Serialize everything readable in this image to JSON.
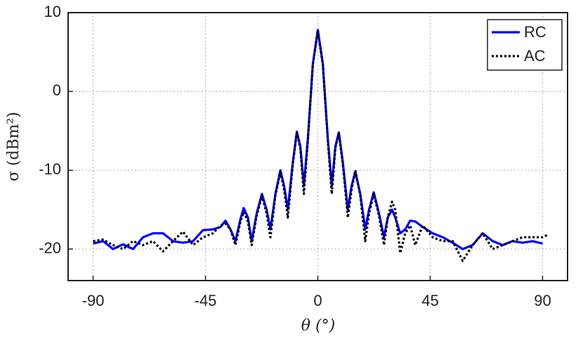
{
  "chart_data": {
    "type": "line",
    "x_label": "θ (°)",
    "y_label": "σ (dBm²)",
    "x": [
      -90,
      -86,
      -82,
      -78,
      -74,
      -70,
      -66,
      -62,
      -58,
      -54,
      -50,
      -46,
      -42,
      -39,
      -37,
      -35,
      -33,
      -31,
      -29.7,
      -28,
      -26.5,
      -24.5,
      -22.4,
      -20.5,
      -19,
      -17,
      -15,
      -13.5,
      -12,
      -10,
      -8.4,
      -7,
      -5.6,
      -4,
      -2,
      0,
      2,
      4,
      5.6,
      7,
      8.4,
      10,
      12,
      13.5,
      15,
      17,
      19,
      20.5,
      22.4,
      24.5,
      26.5,
      28,
      29.7,
      31,
      33,
      35,
      37,
      39,
      42,
      46,
      50,
      54,
      58,
      62,
      66,
      70,
      74,
      78,
      82,
      86,
      90,
      92
    ],
    "series": [
      {
        "name": "RC",
        "color": "#0000ff",
        "style": "solid",
        "values": [
          -19.3,
          -19,
          -20,
          -19.4,
          -20,
          -18.5,
          -18,
          -18,
          -19,
          -19.2,
          -19,
          -17.6,
          -17.5,
          -17.2,
          -16.4,
          -17.5,
          -19,
          -16.2,
          -14.8,
          -16,
          -19,
          -15.5,
          -13,
          -15,
          -17.5,
          -13,
          -10,
          -12,
          -15,
          -9,
          -5.1,
          -7,
          -12,
          -6,
          3.5,
          7.8,
          3.5,
          -6,
          -12,
          -7,
          -5.2,
          -9,
          -15,
          -12,
          -10.2,
          -13,
          -17.5,
          -15,
          -12.8,
          -15.5,
          -18.5,
          -16,
          -15,
          -16,
          -18,
          -17.5,
          -16.4,
          -16.5,
          -17.2,
          -18,
          -18.5,
          -19.2,
          -20,
          -19.5,
          -18,
          -19,
          -19.5,
          -19,
          -19.2,
          -19,
          -19.3,
          null
        ]
      },
      {
        "name": "AC",
        "color": "#000000",
        "style": "dotted",
        "values": [
          -19,
          -18.8,
          -19.5,
          -20,
          -19,
          -19.5,
          -19,
          -20.3,
          -19,
          -17.8,
          -19.5,
          -18.5,
          -18,
          -17,
          -16.8,
          -17.5,
          -19.5,
          -16.5,
          -15.3,
          -16.5,
          -19.5,
          -15.8,
          -13.2,
          -15.5,
          -18.5,
          -13.2,
          -10.2,
          -12.5,
          -16,
          -9.2,
          -5.2,
          -7.2,
          -13,
          -6.2,
          3.4,
          7.7,
          3.4,
          -6.2,
          -13,
          -7.2,
          -5.3,
          -9.2,
          -16,
          -12.5,
          -10,
          -13.2,
          -19,
          -15.5,
          -13,
          -15.8,
          -19.5,
          -16,
          -14,
          -15,
          -20.5,
          -18,
          -17,
          -19.5,
          -17,
          -18.5,
          -19,
          -19,
          -21.5,
          -19.5,
          -18,
          -20,
          -19.5,
          -19,
          -18.5,
          -18.5,
          -18.5,
          -18.2
        ]
      }
    ],
    "xlim": [
      -100,
      100
    ],
    "ylim": [
      -24,
      10
    ],
    "xticks": [
      -90,
      -45,
      0,
      45,
      90
    ],
    "yticks": [
      -20,
      -10,
      0,
      10
    ],
    "grid": true,
    "legend": "top-right"
  }
}
